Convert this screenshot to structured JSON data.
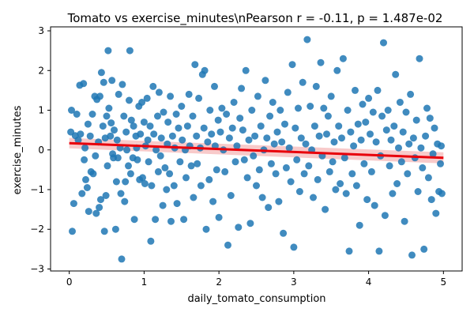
{
  "chart_data": {
    "type": "scatter",
    "title": "Tomato vs exercise_minutes\\nPearson r = -0.11, p = 1.487e-02",
    "xlabel": "daily_tomato_consumption",
    "ylabel": "exercise_minutes",
    "xlim": [
      -0.25,
      5.25
    ],
    "ylim": [
      -3.05,
      3.1
    ],
    "xticks": [
      0,
      1,
      2,
      3,
      4,
      5
    ],
    "yticks": [
      -3,
      -2,
      -1,
      0,
      1,
      2,
      3
    ],
    "grid": false,
    "point_color": "#1f77b4",
    "regression": {
      "color": "#e8000b",
      "band_color": "#f4a6a6",
      "x": [
        0,
        5
      ],
      "y": [
        0.17,
        -0.2
      ],
      "ci_lower": [
        0.04,
        -0.34
      ],
      "ci_upper": [
        0.3,
        -0.06
      ]
    },
    "points": [
      [
        0.02,
        0.45
      ],
      [
        0.03,
        1.0
      ],
      [
        0.04,
        -2.05
      ],
      [
        0.06,
        -1.35
      ],
      [
        0.08,
        0.36
      ],
      [
        0.1,
        0.9
      ],
      [
        0.12,
        0.25
      ],
      [
        0.14,
        1.63
      ],
      [
        0.15,
        0.4
      ],
      [
        0.17,
        -1.1
      ],
      [
        0.19,
        1.67
      ],
      [
        0.2,
        -0.25
      ],
      [
        0.21,
        0.05
      ],
      [
        0.22,
        -0.75
      ],
      [
        0.24,
        -0.95
      ],
      [
        0.25,
        0.65
      ],
      [
        0.26,
        -1.55
      ],
      [
        0.28,
        0.35
      ],
      [
        0.29,
        -0.55
      ],
      [
        0.31,
        0.9
      ],
      [
        0.32,
        -0.6
      ],
      [
        0.34,
        1.35
      ],
      [
        0.35,
        -0.15
      ],
      [
        0.36,
        -1.6
      ],
      [
        0.37,
        1.27
      ],
      [
        0.39,
        0.2
      ],
      [
        0.4,
        -1.45
      ],
      [
        0.41,
        1.35
      ],
      [
        0.42,
        -1.25
      ],
      [
        0.43,
        1.95
      ],
      [
        0.45,
        0.6
      ],
      [
        0.46,
        1.7
      ],
      [
        0.47,
        -2.05
      ],
      [
        0.48,
        0.3
      ],
      [
        0.49,
        -1.15
      ],
      [
        0.5,
        0.85
      ],
      [
        0.51,
        -0.4
      ],
      [
        0.52,
        2.5
      ],
      [
        0.53,
        1.05
      ],
      [
        0.55,
        0.35
      ],
      [
        0.56,
        0.68
      ],
      [
        0.57,
        1.75
      ],
      [
        0.58,
        -0.1
      ],
      [
        0.59,
        -0.2
      ],
      [
        0.6,
        0.5
      ],
      [
        0.62,
        -2.0
      ],
      [
        0.63,
        -0.8
      ],
      [
        0.64,
        0.25
      ],
      [
        0.65,
        -0.2
      ],
      [
        0.66,
        1.4
      ],
      [
        0.68,
        0.05
      ],
      [
        0.69,
        -1.1
      ],
      [
        0.7,
        -2.75
      ],
      [
        0.71,
        1.65
      ],
      [
        0.73,
        0.85
      ],
      [
        0.74,
        -1.3
      ],
      [
        0.75,
        -0.8
      ],
      [
        0.76,
        0.45
      ],
      [
        0.77,
        0.0
      ],
      [
        0.79,
        -0.4
      ],
      [
        0.8,
        1.25
      ],
      [
        0.81,
        2.5
      ],
      [
        0.82,
        -0.6
      ],
      [
        0.83,
        0.75
      ],
      [
        0.85,
        -0.2
      ],
      [
        0.86,
        0.6
      ],
      [
        0.87,
        -1.75
      ],
      [
        0.89,
        0.35
      ],
      [
        0.9,
        0.05
      ],
      [
        0.91,
        -0.25
      ],
      [
        0.93,
        1.1
      ],
      [
        0.94,
        -0.75
      ],
      [
        0.95,
        0.4
      ],
      [
        0.97,
        1.2
      ],
      [
        0.98,
        -0.7
      ],
      [
        1.0,
        0.7
      ],
      [
        1.01,
        -0.85
      ],
      [
        1.02,
        0.1
      ],
      [
        1.04,
        1.3
      ],
      [
        1.05,
        0.25
      ],
      [
        1.06,
        -0.3
      ],
      [
        1.08,
        0.6
      ],
      [
        1.09,
        -2.3
      ],
      [
        1.1,
        -0.9
      ],
      [
        1.12,
        1.6
      ],
      [
        1.13,
        0.4
      ],
      [
        1.15,
        -1.75
      ],
      [
        1.16,
        0.0
      ],
      [
        1.18,
        0.85
      ],
      [
        1.19,
        -0.55
      ],
      [
        1.2,
        1.45
      ],
      [
        1.22,
        -0.15
      ],
      [
        1.23,
        0.3
      ],
      [
        1.25,
        -1.4
      ],
      [
        1.26,
        0.95
      ],
      [
        1.28,
        -0.45
      ],
      [
        1.3,
        -1.0
      ],
      [
        1.31,
        0.15
      ],
      [
        1.32,
        0.7
      ],
      [
        1.34,
        -0.6
      ],
      [
        1.35,
        1.35
      ],
      [
        1.36,
        -1.8
      ],
      [
        1.38,
        0.35
      ],
      [
        1.4,
        -0.9
      ],
      [
        1.41,
        0.05
      ],
      [
        1.43,
        0.9
      ],
      [
        1.44,
        -1.35
      ],
      [
        1.46,
        0.55
      ],
      [
        1.48,
        -0.3
      ],
      [
        1.5,
        1.1
      ],
      [
        1.51,
        0.25
      ],
      [
        1.53,
        -1.75
      ],
      [
        1.55,
        0.0
      ],
      [
        1.56,
        -0.7
      ],
      [
        1.58,
        0.6
      ],
      [
        1.6,
        1.4
      ],
      [
        1.61,
        0.1
      ],
      [
        1.63,
        -0.4
      ],
      [
        1.65,
        0.85
      ],
      [
        1.66,
        -1.2
      ],
      [
        1.68,
        2.15
      ],
      [
        1.7,
        0.35
      ],
      [
        1.71,
        -0.35
      ],
      [
        1.73,
        1.3
      ],
      [
        1.75,
        0.05
      ],
      [
        1.76,
        -0.9
      ],
      [
        1.78,
        1.9
      ],
      [
        1.8,
        0.55
      ],
      [
        1.81,
        2.0
      ],
      [
        1.83,
        -2.0
      ],
      [
        1.85,
        0.2
      ],
      [
        1.87,
        -0.75
      ],
      [
        1.88,
        1.0
      ],
      [
        1.9,
        0.4
      ],
      [
        1.92,
        -1.3
      ],
      [
        1.94,
        1.6
      ],
      [
        1.95,
        0.1
      ],
      [
        1.97,
        -0.5
      ],
      [
        1.99,
        0.75
      ],
      [
        2.0,
        -1.7
      ],
      [
        2.02,
        0.45
      ],
      [
        2.04,
        1.05
      ],
      [
        2.06,
        0.0
      ],
      [
        2.08,
        -0.55
      ],
      [
        2.1,
        0.9
      ],
      [
        2.12,
        -2.4
      ],
      [
        2.14,
        0.3
      ],
      [
        2.16,
        -1.15
      ],
      [
        2.18,
        0.55
      ],
      [
        2.2,
        1.2
      ],
      [
        2.22,
        -0.3
      ],
      [
        2.24,
        0.1
      ],
      [
        2.26,
        -1.95
      ],
      [
        2.28,
        0.8
      ],
      [
        2.3,
        1.55
      ],
      [
        2.32,
        0.5
      ],
      [
        2.34,
        -0.25
      ],
      [
        2.36,
        2.0
      ],
      [
        2.38,
        -0.7
      ],
      [
        2.4,
        0.25
      ],
      [
        2.42,
        -1.85
      ],
      [
        2.44,
        1.0
      ],
      [
        2.46,
        -0.15
      ],
      [
        2.48,
        0.35
      ],
      [
        2.5,
        -0.9
      ],
      [
        2.52,
        1.35
      ],
      [
        2.54,
        -0.5
      ],
      [
        2.56,
        0.6
      ],
      [
        2.58,
        -1.2
      ],
      [
        2.6,
        0.0
      ],
      [
        2.62,
        1.75
      ],
      [
        2.64,
        0.3
      ],
      [
        2.66,
        -1.45
      ],
      [
        2.68,
        0.85
      ],
      [
        2.7,
        -0.35
      ],
      [
        2.72,
        1.2
      ],
      [
        2.74,
        0.15
      ],
      [
        2.76,
        -0.6
      ],
      [
        2.78,
        0.45
      ],
      [
        2.8,
        -1.3
      ],
      [
        2.82,
        1.0
      ],
      [
        2.84,
        0.2
      ],
      [
        2.86,
        -2.1
      ],
      [
        2.88,
        0.65
      ],
      [
        2.9,
        -0.45
      ],
      [
        2.92,
        1.45
      ],
      [
        2.94,
        0.05
      ],
      [
        2.96,
        -0.8
      ],
      [
        2.98,
        2.15
      ],
      [
        3.0,
        -2.45
      ],
      [
        3.02,
        0.55
      ],
      [
        3.04,
        -0.25
      ],
      [
        3.06,
        1.05
      ],
      [
        3.08,
        -1.05
      ],
      [
        3.1,
        0.3
      ],
      [
        3.12,
        1.7
      ],
      [
        3.14,
        -0.6
      ],
      [
        3.16,
        0.15
      ],
      [
        3.18,
        2.78
      ],
      [
        3.2,
        -0.4
      ],
      [
        3.22,
        1.1
      ],
      [
        3.24,
        0.0
      ],
      [
        3.26,
        -1.2
      ],
      [
        3.28,
        0.6
      ],
      [
        3.3,
        1.6
      ],
      [
        3.32,
        -0.75
      ],
      [
        3.34,
        0.35
      ],
      [
        3.36,
        2.2
      ],
      [
        3.38,
        -0.15
      ],
      [
        3.4,
        1.05
      ],
      [
        3.42,
        -1.5
      ],
      [
        3.44,
        0.4
      ],
      [
        3.46,
        0.85
      ],
      [
        3.48,
        -0.55
      ],
      [
        3.5,
        1.35
      ],
      [
        3.52,
        -0.3
      ],
      [
        3.54,
        0.2
      ],
      [
        3.56,
        -1.0
      ],
      [
        3.58,
        2.0
      ],
      [
        3.6,
        0.6
      ],
      [
        3.62,
        -0.85
      ],
      [
        3.64,
        0.3
      ],
      [
        3.66,
        2.3
      ],
      [
        3.68,
        -0.2
      ],
      [
        3.7,
        -1.1
      ],
      [
        3.72,
        1.0
      ],
      [
        3.74,
        -2.55
      ],
      [
        3.76,
        0.45
      ],
      [
        3.78,
        -0.6
      ],
      [
        3.8,
        0.1
      ],
      [
        3.82,
        1.5
      ],
      [
        3.84,
        -0.9
      ],
      [
        3.86,
        0.65
      ],
      [
        3.88,
        -1.9
      ],
      [
        3.9,
        0.25
      ],
      [
        3.92,
        1.15
      ],
      [
        3.94,
        -0.35
      ],
      [
        3.96,
        0.7
      ],
      [
        3.98,
        -1.25
      ],
      [
        4.0,
        1.3
      ],
      [
        4.02,
        0.4
      ],
      [
        4.04,
        -0.55
      ],
      [
        4.06,
        0.95
      ],
      [
        4.08,
        -1.4
      ],
      [
        4.1,
        0.2
      ],
      [
        4.12,
        1.5
      ],
      [
        4.14,
        -2.55
      ],
      [
        4.16,
        -0.15
      ],
      [
        4.18,
        0.85
      ],
      [
        4.2,
        2.7
      ],
      [
        4.22,
        -1.65
      ],
      [
        4.24,
        0.5
      ],
      [
        4.26,
        1.0
      ],
      [
        4.28,
        -0.4
      ],
      [
        4.3,
        0.25
      ],
      [
        4.32,
        -1.1
      ],
      [
        4.34,
        0.6
      ],
      [
        4.36,
        1.9
      ],
      [
        4.38,
        -0.85
      ],
      [
        4.4,
        0.05
      ],
      [
        4.42,
        1.2
      ],
      [
        4.44,
        -0.3
      ],
      [
        4.46,
        0.45
      ],
      [
        4.48,
        -1.8
      ],
      [
        4.5,
        0.95
      ],
      [
        4.52,
        -0.6
      ],
      [
        4.54,
        0.15
      ],
      [
        4.56,
        1.4
      ],
      [
        4.58,
        -2.65
      ],
      [
        4.6,
        0.3
      ],
      [
        4.62,
        -0.2
      ],
      [
        4.64,
        0.75
      ],
      [
        4.66,
        -1.05
      ],
      [
        4.68,
        2.3
      ],
      [
        4.7,
        0.05
      ],
      [
        4.72,
        -0.45
      ],
      [
        4.74,
        -2.5
      ],
      [
        4.76,
        0.35
      ],
      [
        4.78,
        1.05
      ],
      [
        4.8,
        -0.7
      ],
      [
        4.82,
        0.8
      ],
      [
        4.84,
        -1.25
      ],
      [
        4.86,
        -0.1
      ],
      [
        4.88,
        0.55
      ],
      [
        4.9,
        -1.6
      ],
      [
        4.92,
        0.15
      ],
      [
        4.94,
        -1.05
      ],
      [
        4.96,
        -0.35
      ],
      [
        4.97,
        0.1
      ],
      [
        4.98,
        -1.1
      ]
    ]
  }
}
